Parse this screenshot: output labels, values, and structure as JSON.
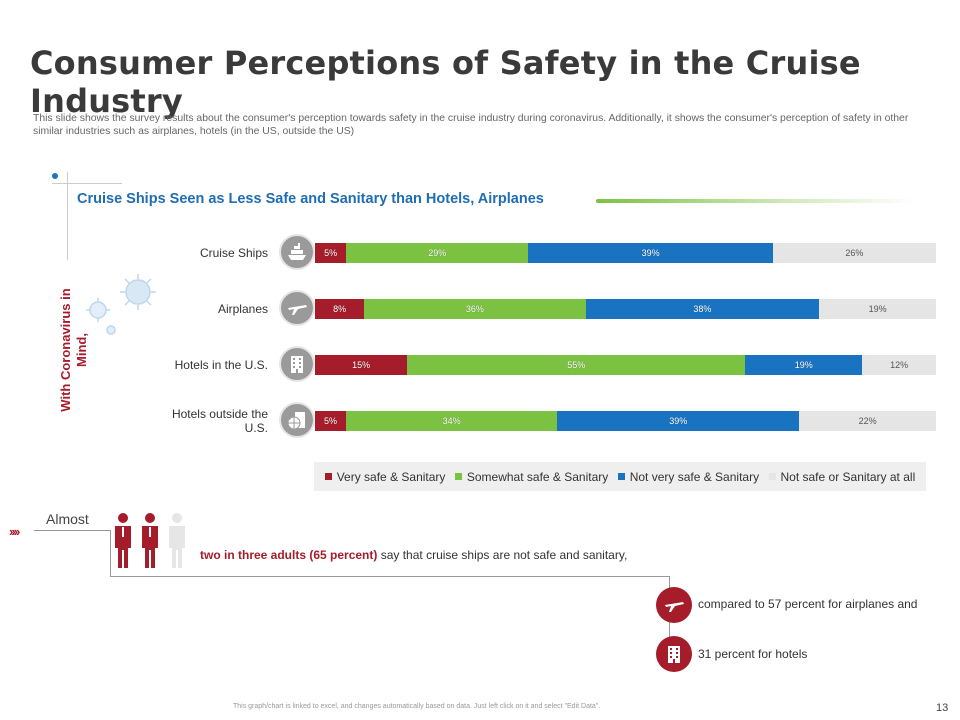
{
  "title": "Consumer Perceptions of Safety in the Cruise Industry",
  "description": "This slide shows the survey results about the consumer's perception towards safety in the cruise industry during coronavirus. Additionally, it shows the consumer's perception of safety in other similar industries such as airplanes, hotels (in the US, outside the US)",
  "side_label": "With Coronavirus in Mind,",
  "chart_data": {
    "type": "bar",
    "orientation": "horizontal",
    "stacked": true,
    "title": "Cruise Ships Seen as Less Safe and Sanitary than Hotels, Airplanes",
    "categories": [
      "Cruise Ships",
      "Airplanes",
      "Hotels in the U.S.",
      "Hotels outside the U.S."
    ],
    "series": [
      {
        "name": "Very safe & Sanitary",
        "color": "#a51c2a",
        "values": [
          5,
          8,
          15,
          5
        ]
      },
      {
        "name": "Somewhat safe & Sanitary",
        "color": "#7cc242",
        "values": [
          29,
          36,
          55,
          34
        ]
      },
      {
        "name": "Not very safe & Sanitary",
        "color": "#1a73c1",
        "values": [
          39,
          38,
          19,
          39
        ]
      },
      {
        "name": "Not safe or Sanitary at all",
        "color": "#e5e5e5",
        "values": [
          26,
          19,
          12,
          22
        ]
      }
    ],
    "legend_position": "bottom",
    "value_suffix": "%"
  },
  "highlight": {
    "lead": "Almost",
    "bold": "two in three adults (65 percent)",
    "rest": "say that cruise ships are not safe and sanitary,"
  },
  "notes": {
    "airplanes": "compared to 57 percent for airplanes and",
    "hotels": "31 percent for hotels"
  },
  "footer": "This graph/chart is linked to excel, and changes automatically based on data. Just left click on it and select \"Edit Data\".",
  "page_number": "13"
}
